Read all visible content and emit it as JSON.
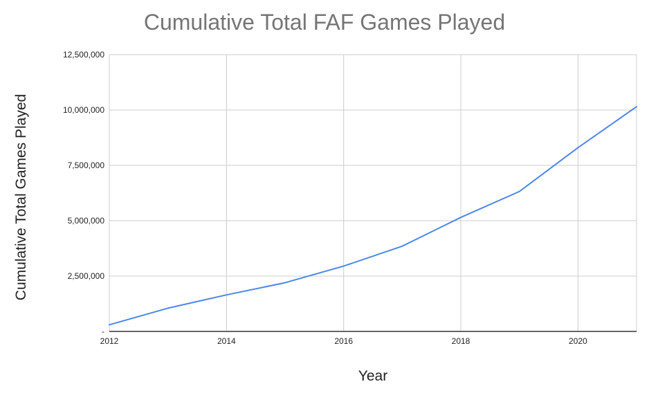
{
  "chart_data": {
    "type": "line",
    "title": "Cumulative Total FAF Games Played",
    "xlabel": "Year",
    "ylabel": "Cumulative Total Games Played",
    "xlim": [
      2012,
      2021
    ],
    "ylim": [
      0,
      12500000
    ],
    "x_ticks": [
      2012,
      2014,
      2016,
      2018,
      2020
    ],
    "x_tick_labels": [
      "2012",
      "2014",
      "2016",
      "2018",
      "2020"
    ],
    "y_ticks": [
      0,
      2500000,
      5000000,
      7500000,
      10000000,
      12500000
    ],
    "y_tick_labels": [
      "-",
      "2,500,000",
      "5,000,000",
      "7,500,000",
      "10,000,000",
      "12,500,000"
    ],
    "grid": true,
    "series": [
      {
        "x": [
          2012,
          2013,
          2014,
          2015,
          2016,
          2017,
          2018,
          2019,
          2020,
          2021
        ],
        "values": [
          300000,
          1050000,
          1650000,
          2200000,
          2950000,
          3850000,
          5150000,
          6320000,
          8300000,
          10150000
        ],
        "color": "#4a86e8"
      }
    ],
    "colors": {
      "grid": "#cccccc",
      "axis": "#333333",
      "line": "#4a86e8",
      "title": "#757575"
    }
  }
}
